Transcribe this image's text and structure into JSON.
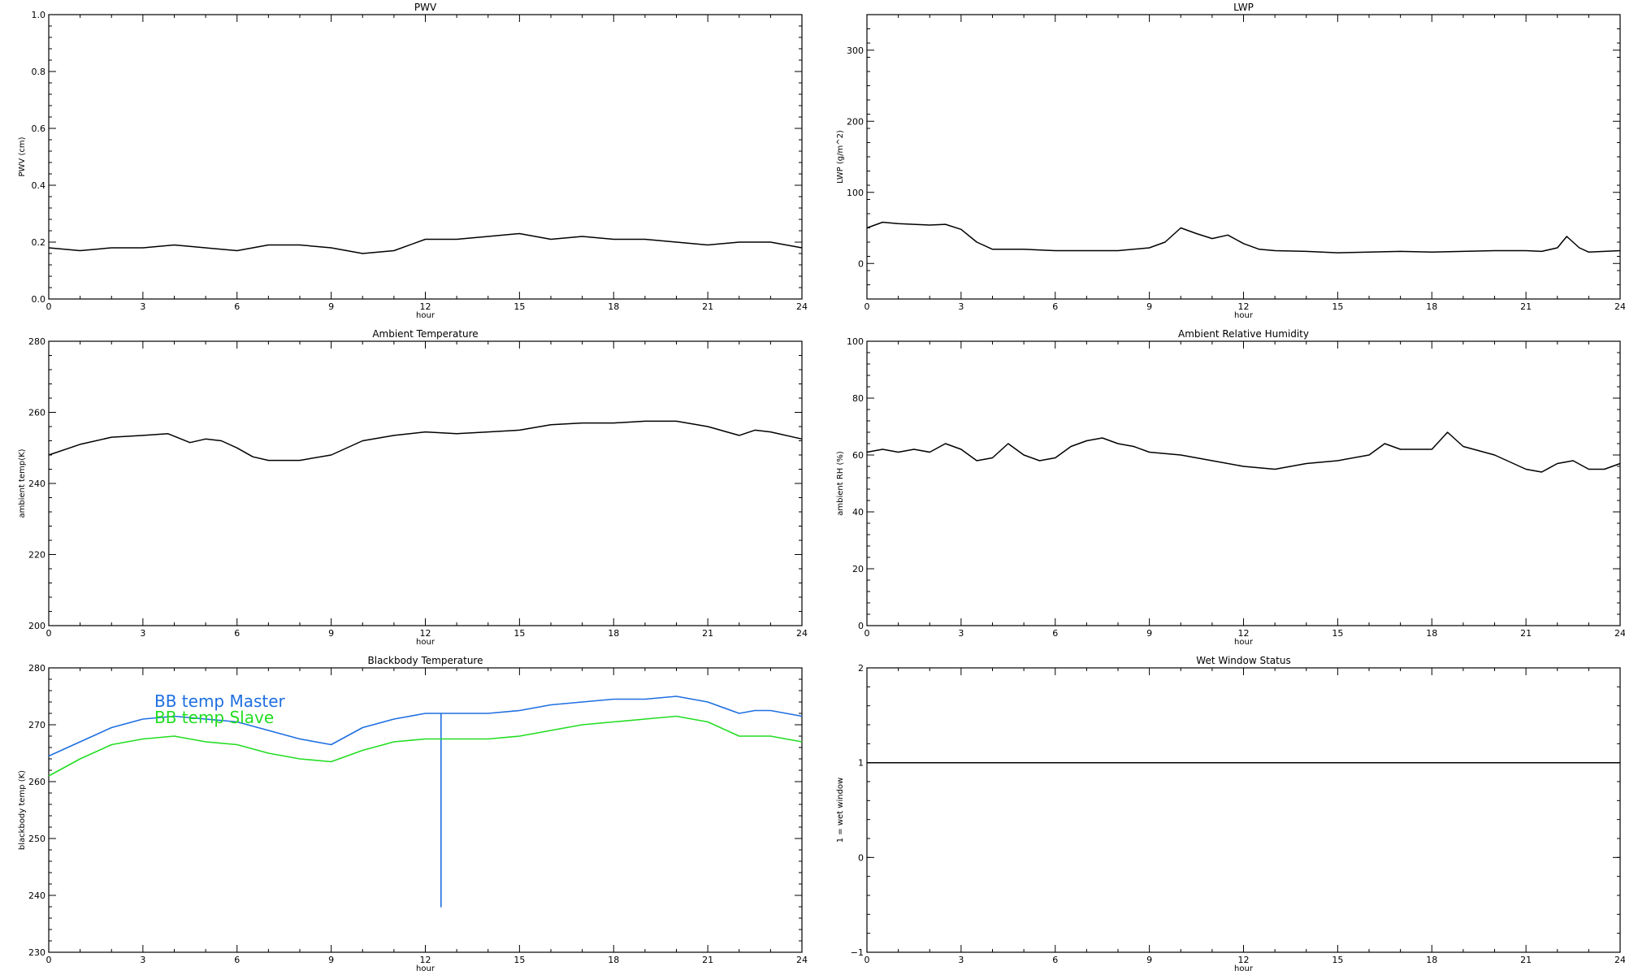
{
  "chart_data": [
    {
      "type": "line",
      "title": "PWV",
      "xlabel": "hour",
      "ylabel": "PWV (cm)",
      "xlim": [
        0,
        24
      ],
      "ylim": [
        0,
        1
      ],
      "x_ticks": [
        0,
        3,
        6,
        9,
        12,
        15,
        18,
        21,
        24
      ],
      "y_ticks": [
        "0.0",
        "0.2",
        "0.4",
        "0.6",
        "0.8",
        "1.0"
      ],
      "y_tick_values": [
        0,
        0.2,
        0.4,
        0.6,
        0.8,
        1.0
      ],
      "series": [
        {
          "color": "#000000",
          "x": [
            0,
            1,
            2,
            3,
            4,
            5,
            6,
            7,
            8,
            9,
            10,
            11,
            12,
            13,
            14,
            15,
            16,
            17,
            18,
            19,
            20,
            21,
            22,
            23,
            24
          ],
          "y": [
            0.18,
            0.17,
            0.18,
            0.18,
            0.19,
            0.18,
            0.17,
            0.19,
            0.19,
            0.18,
            0.16,
            0.17,
            0.21,
            0.21,
            0.22,
            0.23,
            0.21,
            0.22,
            0.21,
            0.21,
            0.2,
            0.19,
            0.2,
            0.2,
            0.18
          ]
        }
      ]
    },
    {
      "type": "line",
      "title": "LWP",
      "xlabel": "hour",
      "ylabel": "LWP (g/m^2)",
      "xlim": [
        0,
        24
      ],
      "ylim": [
        -50,
        350
      ],
      "x_ticks": [
        0,
        3,
        6,
        9,
        12,
        15,
        18,
        21,
        24
      ],
      "y_ticks": [
        "0",
        "100",
        "200",
        "300"
      ],
      "y_tick_values": [
        0,
        100,
        200,
        300
      ],
      "series": [
        {
          "color": "#000000",
          "x": [
            0,
            0.5,
            1,
            1.5,
            2,
            2.5,
            3,
            3.5,
            4,
            5,
            6,
            7,
            8,
            9,
            9.5,
            10,
            10.5,
            11,
            11.5,
            12,
            12.5,
            13,
            14,
            15,
            16,
            17,
            18,
            19,
            20,
            21,
            21.5,
            22,
            22.3,
            22.7,
            23,
            24
          ],
          "y": [
            50,
            58,
            56,
            55,
            54,
            55,
            48,
            30,
            20,
            20,
            18,
            18,
            18,
            22,
            30,
            50,
            42,
            35,
            40,
            28,
            20,
            18,
            17,
            15,
            16,
            17,
            16,
            17,
            18,
            18,
            17,
            22,
            38,
            22,
            16,
            18
          ]
        }
      ]
    },
    {
      "type": "line",
      "title": "Ambient Temperature",
      "xlabel": "hour",
      "ylabel": "ambient temp(K)",
      "xlim": [
        0,
        24
      ],
      "ylim": [
        200,
        280
      ],
      "x_ticks": [
        0,
        3,
        6,
        9,
        12,
        15,
        18,
        21,
        24
      ],
      "y_ticks": [
        "200",
        "220",
        "240",
        "260",
        "280"
      ],
      "y_tick_values": [
        200,
        220,
        240,
        260,
        280
      ],
      "series": [
        {
          "color": "#000000",
          "x": [
            0,
            1,
            2,
            3,
            3.8,
            4.5,
            5,
            5.5,
            6,
            6.5,
            7,
            8,
            9,
            10,
            11,
            12,
            13,
            14,
            15,
            16,
            17,
            18,
            19,
            20,
            21,
            22,
            22.5,
            23,
            24
          ],
          "y": [
            248,
            251,
            253,
            253.5,
            254,
            251.5,
            252.5,
            252,
            250,
            247.5,
            246.5,
            246.5,
            248,
            252,
            253.5,
            254.5,
            254,
            254.5,
            255,
            256.5,
            257,
            257,
            257.5,
            257.5,
            256,
            253.5,
            255,
            254.5,
            252.5
          ]
        }
      ]
    },
    {
      "type": "line",
      "title": "Ambient Relative Humidity",
      "xlabel": "hour",
      "ylabel": "ambient RH (%)",
      "xlim": [
        0,
        24
      ],
      "ylim": [
        0,
        100
      ],
      "x_ticks": [
        0,
        3,
        6,
        9,
        12,
        15,
        18,
        21,
        24
      ],
      "y_ticks": [
        "0",
        "20",
        "40",
        "60",
        "80",
        "100"
      ],
      "y_tick_values": [
        0,
        20,
        40,
        60,
        80,
        100
      ],
      "series": [
        {
          "color": "#000000",
          "x": [
            0,
            0.5,
            1,
            1.5,
            2,
            2.5,
            3,
            3.5,
            4,
            4.5,
            5,
            5.5,
            6,
            6.5,
            7,
            7.5,
            8,
            8.5,
            9,
            10,
            11,
            12,
            13,
            14,
            15,
            16,
            16.5,
            17,
            18,
            18.5,
            19,
            20,
            21,
            21.5,
            22,
            22.5,
            23,
            23.5,
            24
          ],
          "y": [
            61,
            62,
            61,
            62,
            61,
            64,
            62,
            58,
            59,
            64,
            60,
            58,
            59,
            63,
            65,
            66,
            64,
            63,
            61,
            60,
            58,
            56,
            55,
            57,
            58,
            60,
            64,
            62,
            62,
            68,
            63,
            60,
            55,
            54,
            57,
            58,
            55,
            55,
            57
          ]
        }
      ]
    },
    {
      "type": "line",
      "title": "Blackbody Temperature",
      "xlabel": "hour",
      "ylabel": "blackbody temp (K)",
      "xlim": [
        0,
        24
      ],
      "ylim": [
        230,
        280
      ],
      "x_ticks": [
        0,
        3,
        6,
        9,
        12,
        15,
        18,
        21,
        24
      ],
      "y_ticks": [
        "230",
        "240",
        "250",
        "260",
        "270",
        "280"
      ],
      "y_tick_values": [
        230,
        240,
        250,
        260,
        270,
        280
      ],
      "series": [
        {
          "name": "BB temp Master",
          "color": "#1e6fe0",
          "x": [
            0,
            1,
            2,
            3,
            4,
            5,
            6,
            7,
            8,
            9,
            10,
            11,
            12,
            12.5,
            12.5,
            12.5,
            13,
            14,
            15,
            16,
            17,
            18,
            19,
            20,
            21,
            22,
            22.5,
            23,
            24
          ],
          "y": [
            264.5,
            267,
            269.5,
            271,
            271.5,
            271,
            270.5,
            269,
            267.5,
            266.5,
            269.5,
            271,
            272,
            272,
            238,
            272,
            272,
            272,
            272.5,
            273.5,
            274,
            274.5,
            274.5,
            275,
            274,
            272,
            272.5,
            272.5,
            271.5
          ]
        },
        {
          "name": "BB temp Slave",
          "color": "#22dd22",
          "x": [
            0,
            1,
            2,
            3,
            4,
            5,
            6,
            7,
            8,
            9,
            10,
            11,
            12,
            13,
            14,
            15,
            16,
            17,
            18,
            19,
            20,
            21,
            22,
            23,
            24
          ],
          "y": [
            261,
            264,
            266.5,
            267.5,
            268,
            267,
            266.5,
            265,
            264,
            263.5,
            265.5,
            267,
            267.5,
            267.5,
            267.5,
            268,
            269,
            270,
            270.5,
            271,
            271.5,
            270.5,
            268,
            268,
            267
          ]
        }
      ]
    },
    {
      "type": "line",
      "title": "Wet Window Status",
      "xlabel": "hour",
      "ylabel": "1 = wet window",
      "xlim": [
        0,
        24
      ],
      "ylim": [
        -1,
        2
      ],
      "x_ticks": [
        0,
        3,
        6,
        9,
        12,
        15,
        18,
        21,
        24
      ],
      "y_ticks": [
        "−1",
        "0",
        "1",
        "2"
      ],
      "y_tick_values": [
        -1,
        0,
        1,
        2
      ],
      "series": [
        {
          "color": "#000000",
          "x": [
            0,
            24
          ],
          "y": [
            1,
            1
          ]
        }
      ]
    }
  ]
}
